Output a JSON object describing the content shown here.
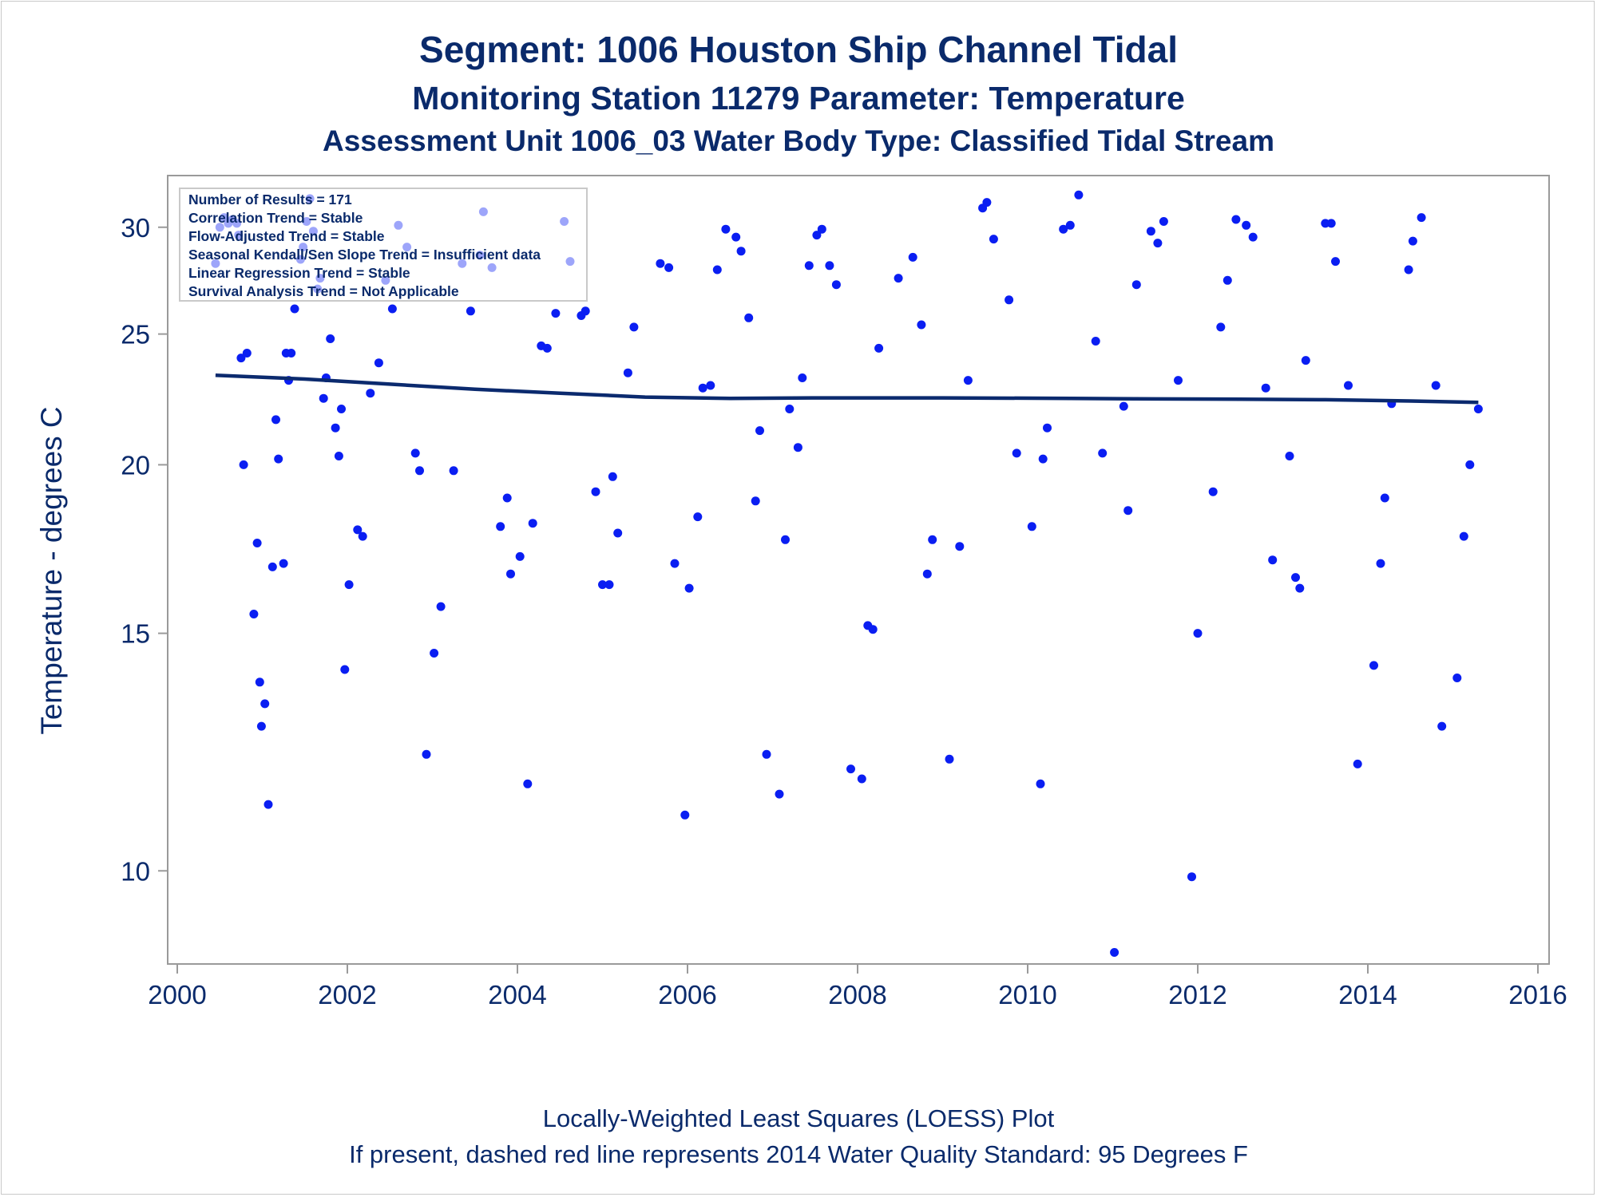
{
  "titles": {
    "line1": "Segment: 1006  Houston Ship Channel Tidal",
    "line2": "Monitoring Station 11279 Parameter: Temperature",
    "line3": "Assessment Unit 1006_03   Water Body Type: Classified Tidal Stream"
  },
  "stats": [
    "Number of Results = 171",
    "Correlation Trend = Stable",
    "Flow-Adjusted Trend = Stable",
    "Seasonal Kendall/Sen Slope Trend = Insufficient data",
    "Linear Regression Trend = Stable",
    "Survival Analysis Trend = Not Applicable"
  ],
  "footnotes": {
    "line1": "Locally-Weighted Least Squares (LOESS) Plot",
    "line2": "If present, dashed red line represents 2014 Water Quality Standard: 95   Degrees F"
  },
  "colors": {
    "points": "#0a1ef2",
    "loess": "#0b2a6e",
    "text": "#0a2a6b",
    "axis": "#9a9a9a"
  },
  "chart_data": {
    "type": "scatter",
    "title": "Segment: 1006  Houston Ship Channel Tidal",
    "xlabel": "",
    "ylabel": "Temperature - degrees C",
    "xlim": [
      2000,
      2016
    ],
    "ylim": [
      8.6,
      32.5
    ],
    "y_scale": "log",
    "x_ticks": [
      "2000",
      "2002",
      "2004",
      "2006",
      "2008",
      "2010",
      "2012",
      "2014",
      "2016"
    ],
    "y_ticks": [
      "10",
      "15",
      "20",
      "25",
      "30"
    ],
    "grid": false,
    "legend": "top-left",
    "points": [
      [
        2000.45,
        28.2
      ],
      [
        2000.5,
        30.0
      ],
      [
        2000.55,
        30.5
      ],
      [
        2000.6,
        30.2
      ],
      [
        2000.65,
        30.4
      ],
      [
        2000.7,
        30.2
      ],
      [
        2000.72,
        29.6
      ],
      [
        2000.75,
        24.0
      ],
      [
        2000.78,
        20.0
      ],
      [
        2000.82,
        24.2
      ],
      [
        2000.9,
        15.5
      ],
      [
        2000.94,
        17.5
      ],
      [
        2000.97,
        13.8
      ],
      [
        2000.99,
        12.8
      ],
      [
        2001.03,
        13.3
      ],
      [
        2001.07,
        11.2
      ],
      [
        2001.12,
        16.8
      ],
      [
        2001.16,
        21.6
      ],
      [
        2001.19,
        20.2
      ],
      [
        2001.25,
        16.9
      ],
      [
        2001.28,
        24.2
      ],
      [
        2001.31,
        23.1
      ],
      [
        2001.34,
        24.2
      ],
      [
        2001.38,
        26.1
      ],
      [
        2001.45,
        28.4
      ],
      [
        2001.48,
        29.0
      ],
      [
        2001.52,
        30.3
      ],
      [
        2001.56,
        31.5
      ],
      [
        2001.6,
        29.8
      ],
      [
        2001.65,
        27.0
      ],
      [
        2001.68,
        27.5
      ],
      [
        2001.72,
        22.4
      ],
      [
        2001.75,
        23.2
      ],
      [
        2001.8,
        24.8
      ],
      [
        2001.86,
        21.3
      ],
      [
        2001.9,
        20.3
      ],
      [
        2001.93,
        22.0
      ],
      [
        2001.97,
        14.1
      ],
      [
        2002.02,
        16.3
      ],
      [
        2002.12,
        17.9
      ],
      [
        2002.18,
        17.7
      ],
      [
        2002.27,
        22.6
      ],
      [
        2002.37,
        23.8
      ],
      [
        2002.45,
        27.4
      ],
      [
        2002.53,
        26.1
      ],
      [
        2002.6,
        30.1
      ],
      [
        2002.7,
        29.0
      ],
      [
        2002.8,
        20.4
      ],
      [
        2002.85,
        19.8
      ],
      [
        2002.93,
        12.2
      ],
      [
        2003.02,
        14.5
      ],
      [
        2003.1,
        15.7
      ],
      [
        2003.25,
        19.8
      ],
      [
        2003.35,
        28.2
      ],
      [
        2003.45,
        26.0
      ],
      [
        2003.56,
        28.6
      ],
      [
        2003.6,
        30.8
      ],
      [
        2003.7,
        28.0
      ],
      [
        2003.8,
        18.0
      ],
      [
        2003.88,
        18.9
      ],
      [
        2003.92,
        16.6
      ],
      [
        2004.03,
        17.1
      ],
      [
        2004.12,
        11.6
      ],
      [
        2004.18,
        18.1
      ],
      [
        2004.28,
        24.5
      ],
      [
        2004.35,
        24.4
      ],
      [
        2004.45,
        25.9
      ],
      [
        2004.55,
        30.3
      ],
      [
        2004.62,
        28.3
      ],
      [
        2004.75,
        25.8
      ],
      [
        2004.8,
        26.0
      ],
      [
        2004.92,
        19.1
      ],
      [
        2005.0,
        16.3
      ],
      [
        2005.08,
        16.3
      ],
      [
        2005.12,
        19.6
      ],
      [
        2005.18,
        17.8
      ],
      [
        2005.3,
        23.4
      ],
      [
        2005.37,
        25.3
      ],
      [
        2005.68,
        28.2
      ],
      [
        2005.78,
        28.0
      ],
      [
        2005.85,
        16.9
      ],
      [
        2005.97,
        11.0
      ],
      [
        2006.02,
        16.2
      ],
      [
        2006.12,
        18.3
      ],
      [
        2006.18,
        22.8
      ],
      [
        2006.27,
        22.9
      ],
      [
        2006.35,
        27.9
      ],
      [
        2006.45,
        29.9
      ],
      [
        2006.57,
        29.5
      ],
      [
        2006.63,
        28.8
      ],
      [
        2006.72,
        25.7
      ],
      [
        2006.8,
        18.8
      ],
      [
        2006.85,
        21.2
      ],
      [
        2006.93,
        12.2
      ],
      [
        2007.08,
        11.4
      ],
      [
        2007.15,
        17.6
      ],
      [
        2007.2,
        22.0
      ],
      [
        2007.3,
        20.6
      ],
      [
        2007.35,
        23.2
      ],
      [
        2007.43,
        28.1
      ],
      [
        2007.52,
        29.6
      ],
      [
        2007.58,
        29.9
      ],
      [
        2007.67,
        28.1
      ],
      [
        2007.75,
        27.2
      ],
      [
        2007.92,
        11.9
      ],
      [
        2008.05,
        11.7
      ],
      [
        2008.12,
        15.2
      ],
      [
        2008.18,
        15.1
      ],
      [
        2008.25,
        24.4
      ],
      [
        2008.48,
        27.5
      ],
      [
        2008.65,
        28.5
      ],
      [
        2008.75,
        25.4
      ],
      [
        2008.82,
        16.6
      ],
      [
        2008.88,
        17.6
      ],
      [
        2009.08,
        12.1
      ],
      [
        2009.2,
        17.4
      ],
      [
        2009.3,
        23.1
      ],
      [
        2009.47,
        31.0
      ],
      [
        2009.52,
        31.3
      ],
      [
        2009.6,
        29.4
      ],
      [
        2009.78,
        26.5
      ],
      [
        2009.87,
        20.4
      ],
      [
        2010.05,
        18.0
      ],
      [
        2010.15,
        11.6
      ],
      [
        2010.18,
        20.2
      ],
      [
        2010.23,
        21.3
      ],
      [
        2010.42,
        29.9
      ],
      [
        2010.5,
        30.1
      ],
      [
        2010.6,
        31.7
      ],
      [
        2010.8,
        24.7
      ],
      [
        2010.88,
        20.4
      ],
      [
        2011.02,
        8.7
      ],
      [
        2011.13,
        22.1
      ],
      [
        2011.18,
        18.5
      ],
      [
        2011.28,
        27.2
      ],
      [
        2011.45,
        29.8
      ],
      [
        2011.53,
        29.2
      ],
      [
        2011.6,
        30.3
      ],
      [
        2011.77,
        23.1
      ],
      [
        2011.93,
        9.9
      ],
      [
        2012.0,
        15.0
      ],
      [
        2012.18,
        19.1
      ],
      [
        2012.27,
        25.3
      ],
      [
        2012.35,
        27.4
      ],
      [
        2012.45,
        30.4
      ],
      [
        2012.57,
        30.1
      ],
      [
        2012.65,
        29.5
      ],
      [
        2012.8,
        22.8
      ],
      [
        2012.88,
        17.0
      ],
      [
        2013.08,
        20.3
      ],
      [
        2013.15,
        16.5
      ],
      [
        2013.2,
        16.2
      ],
      [
        2013.27,
        23.9
      ],
      [
        2013.5,
        30.2
      ],
      [
        2013.57,
        30.2
      ],
      [
        2013.62,
        28.3
      ],
      [
        2013.77,
        22.9
      ],
      [
        2013.88,
        12.0
      ],
      [
        2014.07,
        14.2
      ],
      [
        2014.15,
        16.9
      ],
      [
        2014.2,
        18.9
      ],
      [
        2014.28,
        22.2
      ],
      [
        2014.48,
        27.9
      ],
      [
        2014.53,
        29.3
      ],
      [
        2014.63,
        30.5
      ],
      [
        2014.8,
        22.9
      ],
      [
        2014.87,
        12.8
      ],
      [
        2015.05,
        13.9
      ],
      [
        2015.13,
        17.7
      ],
      [
        2015.2,
        20.0
      ],
      [
        2015.3,
        22.0
      ]
    ],
    "loess": [
      [
        2000.45,
        23.3
      ],
      [
        2001.5,
        23.15
      ],
      [
        2002.5,
        22.95
      ],
      [
        2003.5,
        22.75
      ],
      [
        2004.5,
        22.6
      ],
      [
        2005.5,
        22.45
      ],
      [
        2006.5,
        22.4
      ],
      [
        2007.5,
        22.42
      ],
      [
        2009.0,
        22.42
      ],
      [
        2010.5,
        22.4
      ],
      [
        2011.5,
        22.38
      ],
      [
        2012.5,
        22.37
      ],
      [
        2013.5,
        22.35
      ],
      [
        2014.5,
        22.3
      ],
      [
        2015.3,
        22.25
      ]
    ]
  }
}
